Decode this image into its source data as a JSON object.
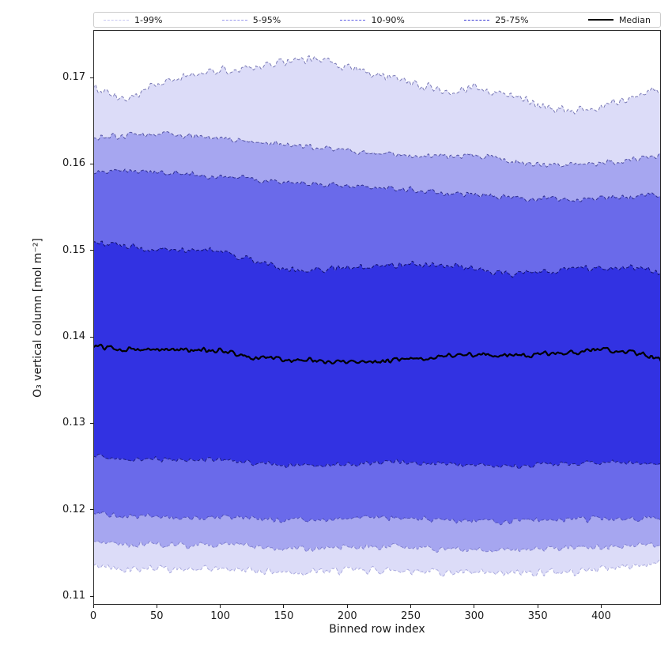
{
  "figure": {
    "background": "#ffffff"
  },
  "legend": {
    "position": "top",
    "items": [
      {
        "label": "1-99%",
        "color": "#c6c6f2",
        "style": "dashed"
      },
      {
        "label": "5-95%",
        "color": "#9898ec",
        "style": "dashed"
      },
      {
        "label": "10-90%",
        "color": "#6060e6",
        "style": "dashed"
      },
      {
        "label": "25-75%",
        "color": "#3a3ad4",
        "style": "dashed"
      },
      {
        "label": "Median",
        "color": "#000000",
        "style": "solid"
      }
    ]
  },
  "chart_data": {
    "type": "area",
    "title": "",
    "xlabel": "Binned row index",
    "ylabel": "O₃ vertical column [mol m⁻²]",
    "xlim": [
      0,
      447
    ],
    "ylim": [
      0.109,
      0.1755
    ],
    "grid": false,
    "legend_position": "top",
    "x_ticks": {
      "values": [
        0,
        50,
        100,
        150,
        200,
        250,
        300,
        350,
        400
      ],
      "labels": [
        "0",
        "50",
        "100",
        "150",
        "200",
        "250",
        "300",
        "350",
        "400"
      ]
    },
    "y_ticks": {
      "values": [
        0.11,
        0.12,
        0.13,
        0.14,
        0.15,
        0.16,
        0.17
      ],
      "labels": [
        "0.11",
        "0.12",
        "0.13",
        "0.14",
        "0.15",
        "0.16",
        "0.17"
      ]
    },
    "anchor_step": 25,
    "n_points": 448,
    "noise_seed": 42,
    "percentiles": {
      "p01": {
        "noise": 0.0006,
        "anchors": [
          0.1135,
          0.1132,
          0.1133,
          0.113,
          0.1132,
          0.113,
          0.1128,
          0.1128,
          0.113,
          0.113,
          0.113,
          0.1128,
          0.1126,
          0.1126,
          0.1128,
          0.1128,
          0.1132,
          0.1135,
          0.1139
        ]
      },
      "p05": {
        "noise": 0.0005,
        "anchors": [
          0.1162,
          0.116,
          0.116,
          0.1158,
          0.116,
          0.1158,
          0.1155,
          0.1155,
          0.1157,
          0.1157,
          0.1157,
          0.1155,
          0.1153,
          0.1153,
          0.1155,
          0.1155,
          0.1157,
          0.1158,
          0.1159
        ]
      },
      "p10": {
        "noise": 0.00045,
        "anchors": [
          0.1196,
          0.1192,
          0.1192,
          0.119,
          0.1192,
          0.119,
          0.1188,
          0.1188,
          0.119,
          0.119,
          0.119,
          0.1188,
          0.1187,
          0.1186,
          0.1188,
          0.1188,
          0.119,
          0.119,
          0.1191
        ]
      },
      "p25": {
        "noise": 0.0004,
        "anchors": [
          0.1262,
          0.1258,
          0.1258,
          0.1257,
          0.1258,
          0.1255,
          0.1252,
          0.1252,
          0.1253,
          0.1255,
          0.1255,
          0.1253,
          0.1252,
          0.125,
          0.1252,
          0.1253,
          0.1255,
          0.1255,
          0.1253
        ]
      },
      "p50": {
        "noise": 0.0004,
        "anchors": [
          0.139,
          0.1386,
          0.1385,
          0.1385,
          0.1384,
          0.1377,
          0.1374,
          0.1372,
          0.137,
          0.1372,
          0.1375,
          0.1377,
          0.138,
          0.1378,
          0.138,
          0.1382,
          0.1385,
          0.1383,
          0.1372
        ]
      },
      "p75": {
        "noise": 0.0005,
        "anchors": [
          0.151,
          0.1505,
          0.1501,
          0.15,
          0.15,
          0.1489,
          0.1478,
          0.1477,
          0.148,
          0.1482,
          0.1485,
          0.1482,
          0.148,
          0.1472,
          0.1475,
          0.1478,
          0.148,
          0.148,
          0.1475
        ]
      },
      "p90": {
        "noise": 0.00045,
        "anchors": [
          0.1591,
          0.1592,
          0.159,
          0.1588,
          0.1585,
          0.1582,
          0.158,
          0.1577,
          0.1575,
          0.1572,
          0.157,
          0.1566,
          0.1565,
          0.1562,
          0.156,
          0.1558,
          0.156,
          0.1562,
          0.1565
        ]
      },
      "p95": {
        "noise": 0.00045,
        "anchors": [
          0.163,
          0.1633,
          0.1635,
          0.1632,
          0.163,
          0.1627,
          0.1622,
          0.1619,
          0.1615,
          0.1612,
          0.161,
          0.1608,
          0.161,
          0.1605,
          0.16,
          0.1598,
          0.1602,
          0.1605,
          0.161
        ]
      },
      "p99": {
        "noise": 0.0007,
        "anchors": [
          0.169,
          0.1672,
          0.1692,
          0.1701,
          0.1709,
          0.171,
          0.1719,
          0.1722,
          0.1712,
          0.1703,
          0.1694,
          0.1683,
          0.169,
          0.1681,
          0.1669,
          0.1661,
          0.1667,
          0.1677,
          0.1688
        ]
      }
    },
    "bands": [
      {
        "label": "1-99%",
        "lower": "p01",
        "upper": "p99",
        "fill": "#dcdcf8",
        "upper_edge": "rgba(30,30,125,0.55)",
        "lower_edge": "rgba(120,120,200,0.55)"
      },
      {
        "label": "5-95%",
        "lower": "p05",
        "upper": "p95",
        "fill": "#a6a6f0",
        "upper_edge": "rgba(28,28,122,0.65)",
        "lower_edge": "rgba(95,95,185,0.60)"
      },
      {
        "label": "10-90%",
        "lower": "p10",
        "upper": "p90",
        "fill": "#6a6aea",
        "upper_edge": "rgba(24,24,118,0.78)",
        "lower_edge": "rgba(60,60,165,0.70)"
      },
      {
        "label": "25-75%",
        "lower": "p25",
        "upper": "p75",
        "fill": "#3232e2",
        "upper_edge": "rgba(14,14,105,0.95)",
        "lower_edge": "rgba(22,22,115,0.85)"
      }
    ],
    "median": {
      "label": "Median",
      "key": "p50",
      "color": "#000000",
      "width": 2.2
    }
  }
}
